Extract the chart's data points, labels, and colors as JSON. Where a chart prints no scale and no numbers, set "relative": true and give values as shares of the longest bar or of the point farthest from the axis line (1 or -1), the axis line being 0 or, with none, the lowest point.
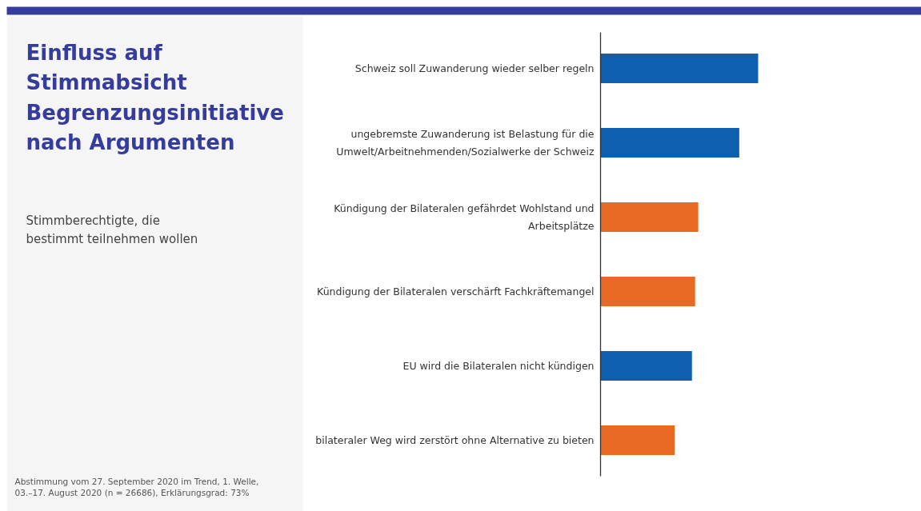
{
  "chart_data": {
    "type": "bar",
    "orientation": "horizontal",
    "relative": true,
    "title": "Einfluss auf Stimmabsicht Begrenzungsinitiative nach Argumenten",
    "subtitle": "Stimmberechtigte, die bestimmt teilnehmen wollen",
    "annotations": [
      "Abstimmung vom 27. September 2020 im Trend, 1. Welle, 03.–17. August 2020 (n = 26686), Erklärungsgrad: 73%"
    ],
    "categories": [
      "Schweiz soll Zuwanderung wieder selber regeln",
      "ungebremste Zuwanderung ist Belastung für die Umwelt/Arbeitnehmenden/Sozialwerke der Schweiz",
      "Kündigung der Bilateralen gefährdet Wohlstand und Arbeitsplätze",
      "Kündigung der Bilateralen verschärft Fachkräftemangel",
      "EU wird die Bilateralen nicht kündigen",
      "bilateraler Weg wird zerstört ohne Alternative zu bieten"
    ],
    "values": [
      1,
      0.88,
      0.62,
      0.6,
      0.58,
      0.47
    ],
    "colors": [
      "#0e5fae",
      "#0e5fae",
      "#e86a22",
      "#e86a22",
      "#0e5fae",
      "#e86a22"
    ],
    "grid": false
  }
}
